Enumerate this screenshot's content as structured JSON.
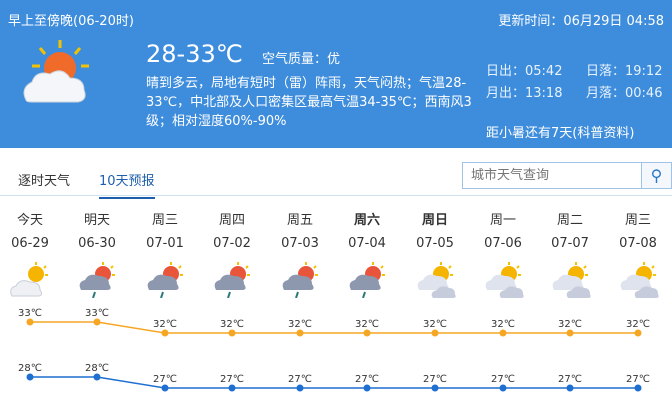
{
  "header": {
    "period": "早上至傍晚(06-20时)",
    "update": "更新时间：06月29日 04:58",
    "temp": "28-33℃",
    "air_quality": "空气质量：优",
    "description": "晴到多云，局地有短时（雷）阵雨，天气闷热；气温28-33℃，中北部及人口密集区最高气温34-35℃；西南风3级；相对湿度60%-90%",
    "sunrise": "日出：05:42",
    "sunset": "日落：19:12",
    "moonrise": "月出：13:18",
    "moonset": "月落：00:46",
    "solar_term": "距小暑还有7天(科普资料)",
    "icon": "sun-cloud-icon"
  },
  "tabs": [
    {
      "label": "逐时天气"
    },
    {
      "label": "10天预报",
      "active": true
    }
  ],
  "search": {
    "placeholder": "城市天气查询",
    "icon": "search-icon"
  },
  "colors": {
    "header": "#3e8ddc",
    "high": "#f5a623",
    "low": "#1e6fd0"
  },
  "forecast": [
    {
      "day": "今天",
      "date": "06-29",
      "icon": "sun-cloud",
      "high": "33℃",
      "low": "28℃"
    },
    {
      "day": "明天",
      "date": "06-30",
      "icon": "thunder-shower",
      "high": "33℃",
      "low": "28℃"
    },
    {
      "day": "周三",
      "date": "07-01",
      "icon": "thunder-shower",
      "high": "32℃",
      "low": "27℃"
    },
    {
      "day": "周四",
      "date": "07-02",
      "icon": "thunder-shower",
      "high": "32℃",
      "low": "27℃"
    },
    {
      "day": "周五",
      "date": "07-03",
      "icon": "thunder-shower",
      "high": "32℃",
      "low": "27℃"
    },
    {
      "day": "周六",
      "date": "07-04",
      "icon": "thunder-shower",
      "high": "32℃",
      "low": "27℃",
      "bold": true
    },
    {
      "day": "周日",
      "date": "07-05",
      "icon": "partly-cloudy",
      "high": "32℃",
      "low": "27℃",
      "bold": true
    },
    {
      "day": "周一",
      "date": "07-06",
      "icon": "partly-cloudy",
      "high": "32℃",
      "low": "27℃"
    },
    {
      "day": "周二",
      "date": "07-07",
      "icon": "partly-cloudy",
      "high": "32℃",
      "low": "27℃"
    },
    {
      "day": "周三",
      "date": "07-08",
      "icon": "partly-cloudy",
      "high": "32℃",
      "low": "27℃"
    }
  ]
}
